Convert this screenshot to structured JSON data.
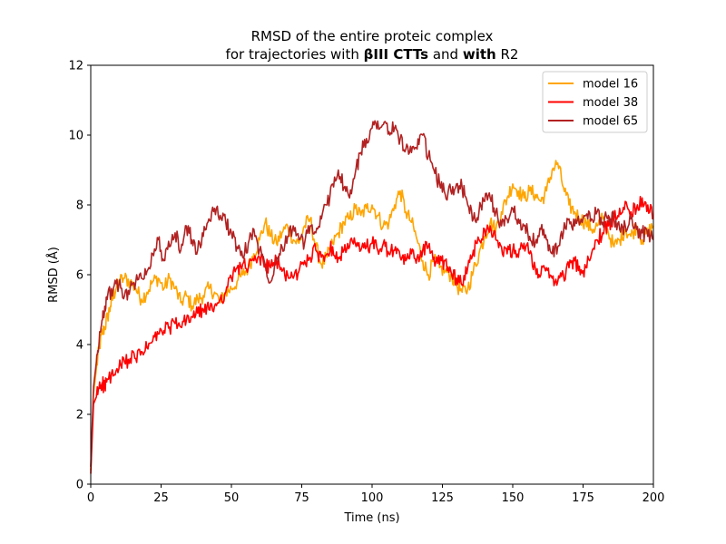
{
  "chart_data": {
    "type": "line",
    "title_line1": "RMSD of the entire proteic complex",
    "title_line2": {
      "prefix": "for trajectories with ",
      "bold1": "βIII CTTs",
      "middle": " and ",
      "bold2": "with",
      "suffix": " R2"
    },
    "xlabel": "Time (ns)",
    "ylabel": "RMSD (Å)",
    "xlim": [
      0,
      200
    ],
    "ylim": [
      0,
      12
    ],
    "xticks": [
      0,
      25,
      50,
      75,
      100,
      125,
      150,
      175,
      200
    ],
    "yticks": [
      0,
      2,
      4,
      6,
      8,
      10,
      12
    ],
    "grid": false,
    "legend_position": "top-right",
    "series": [
      {
        "name": "model 16",
        "color": "#FFA500",
        "points": [
          [
            0,
            0.4
          ],
          [
            1,
            2.6
          ],
          [
            2,
            3.3
          ],
          [
            3,
            3.9
          ],
          [
            4,
            4.3
          ],
          [
            5,
            4.5
          ],
          [
            6,
            4.8
          ],
          [
            7,
            5.1
          ],
          [
            8,
            5.4
          ],
          [
            9,
            5.6
          ],
          [
            10,
            5.8
          ],
          [
            12,
            5.9
          ],
          [
            14,
            5.8
          ],
          [
            16,
            5.6
          ],
          [
            18,
            5.3
          ],
          [
            20,
            5.5
          ],
          [
            22,
            5.8
          ],
          [
            24,
            5.9
          ],
          [
            26,
            5.6
          ],
          [
            28,
            5.9
          ],
          [
            30,
            5.6
          ],
          [
            32,
            5.2
          ],
          [
            34,
            5.4
          ],
          [
            36,
            5.1
          ],
          [
            38,
            5.3
          ],
          [
            40,
            5.4
          ],
          [
            42,
            5.6
          ],
          [
            44,
            5.5
          ],
          [
            46,
            5.2
          ],
          [
            48,
            5.5
          ],
          [
            50,
            5.6
          ],
          [
            52,
            5.8
          ],
          [
            54,
            6.0
          ],
          [
            56,
            6.2
          ],
          [
            58,
            6.6
          ],
          [
            60,
            7.0
          ],
          [
            62,
            7.5
          ],
          [
            64,
            7.1
          ],
          [
            66,
            6.9
          ],
          [
            68,
            7.2
          ],
          [
            70,
            7.4
          ],
          [
            72,
            7.0
          ],
          [
            74,
            6.9
          ],
          [
            76,
            7.4
          ],
          [
            78,
            7.6
          ],
          [
            80,
            6.8
          ],
          [
            82,
            6.3
          ],
          [
            84,
            6.5
          ],
          [
            86,
            6.9
          ],
          [
            88,
            7.2
          ],
          [
            90,
            7.5
          ],
          [
            92,
            7.6
          ],
          [
            94,
            7.9
          ],
          [
            96,
            7.7
          ],
          [
            98,
            7.9
          ],
          [
            100,
            8.0
          ],
          [
            102,
            7.7
          ],
          [
            104,
            7.4
          ],
          [
            106,
            7.5
          ],
          [
            108,
            8.0
          ],
          [
            110,
            8.4
          ],
          [
            112,
            7.8
          ],
          [
            114,
            7.5
          ],
          [
            116,
            7.0
          ],
          [
            118,
            6.4
          ],
          [
            120,
            6.0
          ],
          [
            122,
            6.4
          ],
          [
            124,
            6.2
          ],
          [
            126,
            6.1
          ],
          [
            128,
            6.0
          ],
          [
            130,
            5.7
          ],
          [
            132,
            5.5
          ],
          [
            134,
            5.6
          ],
          [
            136,
            6.1
          ],
          [
            138,
            6.6
          ],
          [
            140,
            7.1
          ],
          [
            142,
            7.5
          ],
          [
            144,
            7.3
          ],
          [
            146,
            7.8
          ],
          [
            148,
            8.2
          ],
          [
            150,
            8.6
          ],
          [
            152,
            8.4
          ],
          [
            154,
            8.2
          ],
          [
            156,
            8.4
          ],
          [
            158,
            8.3
          ],
          [
            160,
            8.1
          ],
          [
            162,
            8.4
          ],
          [
            164,
            9.0
          ],
          [
            166,
            9.2
          ],
          [
            168,
            8.5
          ],
          [
            170,
            8.0
          ],
          [
            172,
            7.8
          ],
          [
            174,
            7.6
          ],
          [
            176,
            7.5
          ],
          [
            178,
            7.3
          ],
          [
            180,
            7.4
          ],
          [
            182,
            7.6
          ],
          [
            184,
            7.2
          ],
          [
            186,
            6.8
          ],
          [
            188,
            7.0
          ],
          [
            190,
            7.3
          ],
          [
            192,
            7.1
          ],
          [
            194,
            7.4
          ],
          [
            196,
            7.0
          ],
          [
            198,
            7.2
          ],
          [
            200,
            7.4
          ]
        ]
      },
      {
        "name": "model 38",
        "color": "#FF0000",
        "points": [
          [
            0,
            0.3
          ],
          [
            1,
            2.3
          ],
          [
            2,
            2.5
          ],
          [
            3,
            2.8
          ],
          [
            4,
            2.9
          ],
          [
            5,
            2.8
          ],
          [
            6,
            3.0
          ],
          [
            8,
            3.1
          ],
          [
            10,
            3.3
          ],
          [
            12,
            3.5
          ],
          [
            14,
            3.6
          ],
          [
            16,
            3.6
          ],
          [
            18,
            3.8
          ],
          [
            20,
            3.9
          ],
          [
            22,
            4.1
          ],
          [
            24,
            4.3
          ],
          [
            26,
            4.4
          ],
          [
            28,
            4.5
          ],
          [
            30,
            4.6
          ],
          [
            32,
            4.5
          ],
          [
            34,
            4.7
          ],
          [
            36,
            4.8
          ],
          [
            38,
            4.9
          ],
          [
            40,
            5.0
          ],
          [
            42,
            5.0
          ],
          [
            44,
            5.1
          ],
          [
            46,
            5.3
          ],
          [
            48,
            5.5
          ],
          [
            50,
            5.9
          ],
          [
            52,
            6.2
          ],
          [
            54,
            6.3
          ],
          [
            56,
            6.2
          ],
          [
            58,
            6.4
          ],
          [
            60,
            6.5
          ],
          [
            62,
            6.3
          ],
          [
            64,
            6.2
          ],
          [
            66,
            6.4
          ],
          [
            68,
            6.1
          ],
          [
            70,
            6.0
          ],
          [
            72,
            5.9
          ],
          [
            74,
            6.1
          ],
          [
            76,
            6.4
          ],
          [
            78,
            6.5
          ],
          [
            80,
            6.7
          ],
          [
            82,
            6.5
          ],
          [
            84,
            6.6
          ],
          [
            86,
            6.8
          ],
          [
            88,
            6.5
          ],
          [
            90,
            6.7
          ],
          [
            92,
            6.8
          ],
          [
            94,
            6.9
          ],
          [
            96,
            6.7
          ],
          [
            98,
            6.8
          ],
          [
            100,
            6.9
          ],
          [
            102,
            6.7
          ],
          [
            104,
            6.9
          ],
          [
            106,
            6.6
          ],
          [
            108,
            6.7
          ],
          [
            110,
            6.5
          ],
          [
            112,
            6.4
          ],
          [
            114,
            6.6
          ],
          [
            116,
            6.5
          ],
          [
            118,
            6.7
          ],
          [
            120,
            6.8
          ],
          [
            122,
            6.5
          ],
          [
            124,
            6.3
          ],
          [
            126,
            6.4
          ],
          [
            128,
            6.1
          ],
          [
            130,
            5.9
          ],
          [
            132,
            5.7
          ],
          [
            134,
            6.2
          ],
          [
            136,
            6.7
          ],
          [
            138,
            7.0
          ],
          [
            140,
            7.3
          ],
          [
            142,
            7.4
          ],
          [
            144,
            7.0
          ],
          [
            146,
            6.8
          ],
          [
            148,
            6.6
          ],
          [
            150,
            6.7
          ],
          [
            152,
            6.5
          ],
          [
            154,
            6.9
          ],
          [
            156,
            6.6
          ],
          [
            158,
            6.2
          ],
          [
            160,
            6.0
          ],
          [
            162,
            6.2
          ],
          [
            164,
            5.9
          ],
          [
            166,
            5.8
          ],
          [
            168,
            6.0
          ],
          [
            170,
            6.2
          ],
          [
            172,
            6.4
          ],
          [
            174,
            6.0
          ],
          [
            176,
            6.2
          ],
          [
            178,
            6.6
          ],
          [
            180,
            7.0
          ],
          [
            182,
            7.2
          ],
          [
            184,
            7.4
          ],
          [
            186,
            7.6
          ],
          [
            188,
            7.9
          ],
          [
            190,
            8.1
          ],
          [
            192,
            7.8
          ],
          [
            194,
            7.9
          ],
          [
            196,
            8.2
          ],
          [
            198,
            8.0
          ],
          [
            200,
            7.6
          ]
        ]
      },
      {
        "name": "model 65",
        "color": "#B22222",
        "points": [
          [
            0,
            0.5
          ],
          [
            1,
            2.8
          ],
          [
            2,
            3.5
          ],
          [
            3,
            4.1
          ],
          [
            4,
            4.7
          ],
          [
            5,
            5.1
          ],
          [
            6,
            5.4
          ],
          [
            8,
            5.6
          ],
          [
            10,
            5.7
          ],
          [
            12,
            5.4
          ],
          [
            14,
            5.6
          ],
          [
            16,
            5.8
          ],
          [
            18,
            5.9
          ],
          [
            20,
            6.1
          ],
          [
            22,
            6.6
          ],
          [
            24,
            7.0
          ],
          [
            26,
            6.4
          ],
          [
            28,
            6.8
          ],
          [
            30,
            7.2
          ],
          [
            32,
            6.7
          ],
          [
            34,
            7.4
          ],
          [
            36,
            7.0
          ],
          [
            38,
            6.7
          ],
          [
            40,
            7.1
          ],
          [
            42,
            7.6
          ],
          [
            44,
            7.9
          ],
          [
            46,
            7.7
          ],
          [
            48,
            7.5
          ],
          [
            50,
            7.2
          ],
          [
            52,
            6.8
          ],
          [
            54,
            6.5
          ],
          [
            56,
            6.9
          ],
          [
            58,
            7.3
          ],
          [
            60,
            6.7
          ],
          [
            62,
            6.3
          ],
          [
            64,
            5.8
          ],
          [
            66,
            6.5
          ],
          [
            68,
            6.8
          ],
          [
            70,
            7.1
          ],
          [
            72,
            7.4
          ],
          [
            74,
            7.0
          ],
          [
            76,
            6.9
          ],
          [
            78,
            7.4
          ],
          [
            80,
            7.2
          ],
          [
            82,
            7.6
          ],
          [
            84,
            8.0
          ],
          [
            86,
            8.6
          ],
          [
            88,
            9.0
          ],
          [
            90,
            8.5
          ],
          [
            92,
            8.2
          ],
          [
            94,
            8.9
          ],
          [
            96,
            9.5
          ],
          [
            98,
            9.9
          ],
          [
            100,
            10.2
          ],
          [
            102,
            10.4
          ],
          [
            104,
            10.3
          ],
          [
            106,
            10.1
          ],
          [
            108,
            10.2
          ],
          [
            110,
            9.9
          ],
          [
            112,
            9.6
          ],
          [
            114,
            9.5
          ],
          [
            116,
            9.6
          ],
          [
            118,
            10.0
          ],
          [
            120,
            9.4
          ],
          [
            122,
            9.0
          ],
          [
            124,
            8.6
          ],
          [
            126,
            8.3
          ],
          [
            128,
            8.4
          ],
          [
            130,
            8.6
          ],
          [
            132,
            8.5
          ],
          [
            134,
            8.0
          ],
          [
            136,
            7.6
          ],
          [
            138,
            7.8
          ],
          [
            140,
            8.1
          ],
          [
            142,
            8.2
          ],
          [
            144,
            7.8
          ],
          [
            146,
            7.4
          ],
          [
            148,
            7.6
          ],
          [
            150,
            7.9
          ],
          [
            152,
            7.6
          ],
          [
            154,
            7.4
          ],
          [
            156,
            7.1
          ],
          [
            158,
            6.9
          ],
          [
            160,
            7.3
          ],
          [
            162,
            7.0
          ],
          [
            164,
            6.6
          ],
          [
            166,
            6.8
          ],
          [
            168,
            7.2
          ],
          [
            170,
            7.6
          ],
          [
            172,
            7.4
          ],
          [
            174,
            7.5
          ],
          [
            176,
            7.7
          ],
          [
            178,
            7.6
          ],
          [
            180,
            7.8
          ],
          [
            182,
            7.5
          ],
          [
            184,
            7.7
          ],
          [
            186,
            7.6
          ],
          [
            188,
            7.3
          ],
          [
            190,
            7.4
          ],
          [
            192,
            7.6
          ],
          [
            194,
            7.3
          ],
          [
            196,
            7.2
          ],
          [
            198,
            7.1
          ],
          [
            200,
            7.0
          ]
        ]
      }
    ]
  }
}
